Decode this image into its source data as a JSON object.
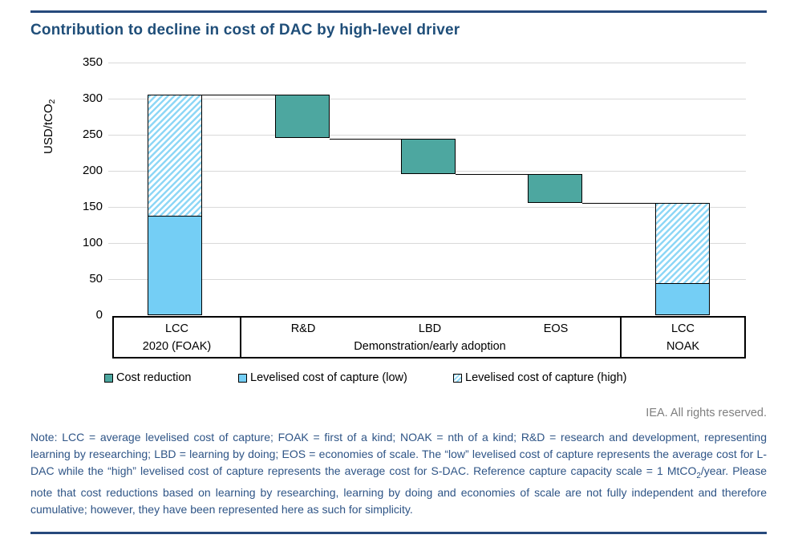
{
  "title": "Contribution to decline in cost of DAC by high-level driver",
  "copyright": "IEA. All rights reserved.",
  "note": {
    "before_sub": "Note: LCC = average levelised cost of capture; FOAK = first of a kind; NOAK = nth of a kind; R&D = research and development, representing learning by researching; LBD = learning by doing; EOS = economies of scale. The “low” levelised cost of capture represents the average cost for L-DAC while the “high” levelised cost of capture represents the average cost for S-DAC. Reference capture capacity scale = 1 MtCO",
    "sub": "2",
    "after_sub": "/year. Please note that cost reductions based on learning by researching, learning by doing and economies of scale are not fully independent and therefore cumulative; however, they have been represented here as such for simplicity."
  },
  "colors": {
    "accent_navy": "#1f4e79",
    "rule_navy": "#26497c",
    "note_navy": "#2e5486",
    "teal": "#4da7a0",
    "blue_solid": "#74cef5",
    "blue_hatch": "#8ed7f6",
    "gridline": "#d9d9d9",
    "copyright_gray": "#7f7f7f",
    "bar_border": "#000000"
  },
  "chart_data": {
    "type": "waterfall",
    "title": "Contribution to decline in cost of DAC by high-level driver",
    "ylabel_prefix": "USD/tCO",
    "ylabel_sub": "2",
    "ylim": [
      0,
      350
    ],
    "yticks": [
      350,
      300,
      250,
      200,
      150,
      100,
      50,
      0
    ],
    "grid": "horizontal",
    "bars": [
      {
        "category": "LCC",
        "subcategory": "2020 (FOAK)",
        "kind": "stacked",
        "low": 137,
        "high": 306
      },
      {
        "category": "R&D",
        "group": "Demonstration/early adoption",
        "kind": "reduction",
        "from": 306,
        "to": 245
      },
      {
        "category": "LBD",
        "group": "Demonstration/early adoption",
        "kind": "reduction",
        "from": 245,
        "to": 196
      },
      {
        "category": "EOS",
        "group": "Demonstration/early adoption",
        "kind": "reduction",
        "from": 196,
        "to": 156
      },
      {
        "category": "LCC",
        "subcategory": "NOAK",
        "kind": "stacked",
        "low": 43,
        "high": 156
      }
    ],
    "x_axis": {
      "groups": [
        {
          "top": "LCC",
          "bottom": "2020 (FOAK)"
        },
        {
          "top_items": {
            "0": "R&D",
            "1": "LBD",
            "2": "EOS"
          },
          "bottom": "Demonstration/early adoption"
        },
        {
          "top": "LCC",
          "bottom": "NOAK"
        }
      ]
    },
    "legend": [
      {
        "label": "Cost reduction",
        "swatch": "teal-solid"
      },
      {
        "label": "Levelised cost of capture (low)",
        "swatch": "blue-solid"
      },
      {
        "label": "Levelised cost of capture (high)",
        "swatch": "blue-hatched"
      }
    ]
  }
}
